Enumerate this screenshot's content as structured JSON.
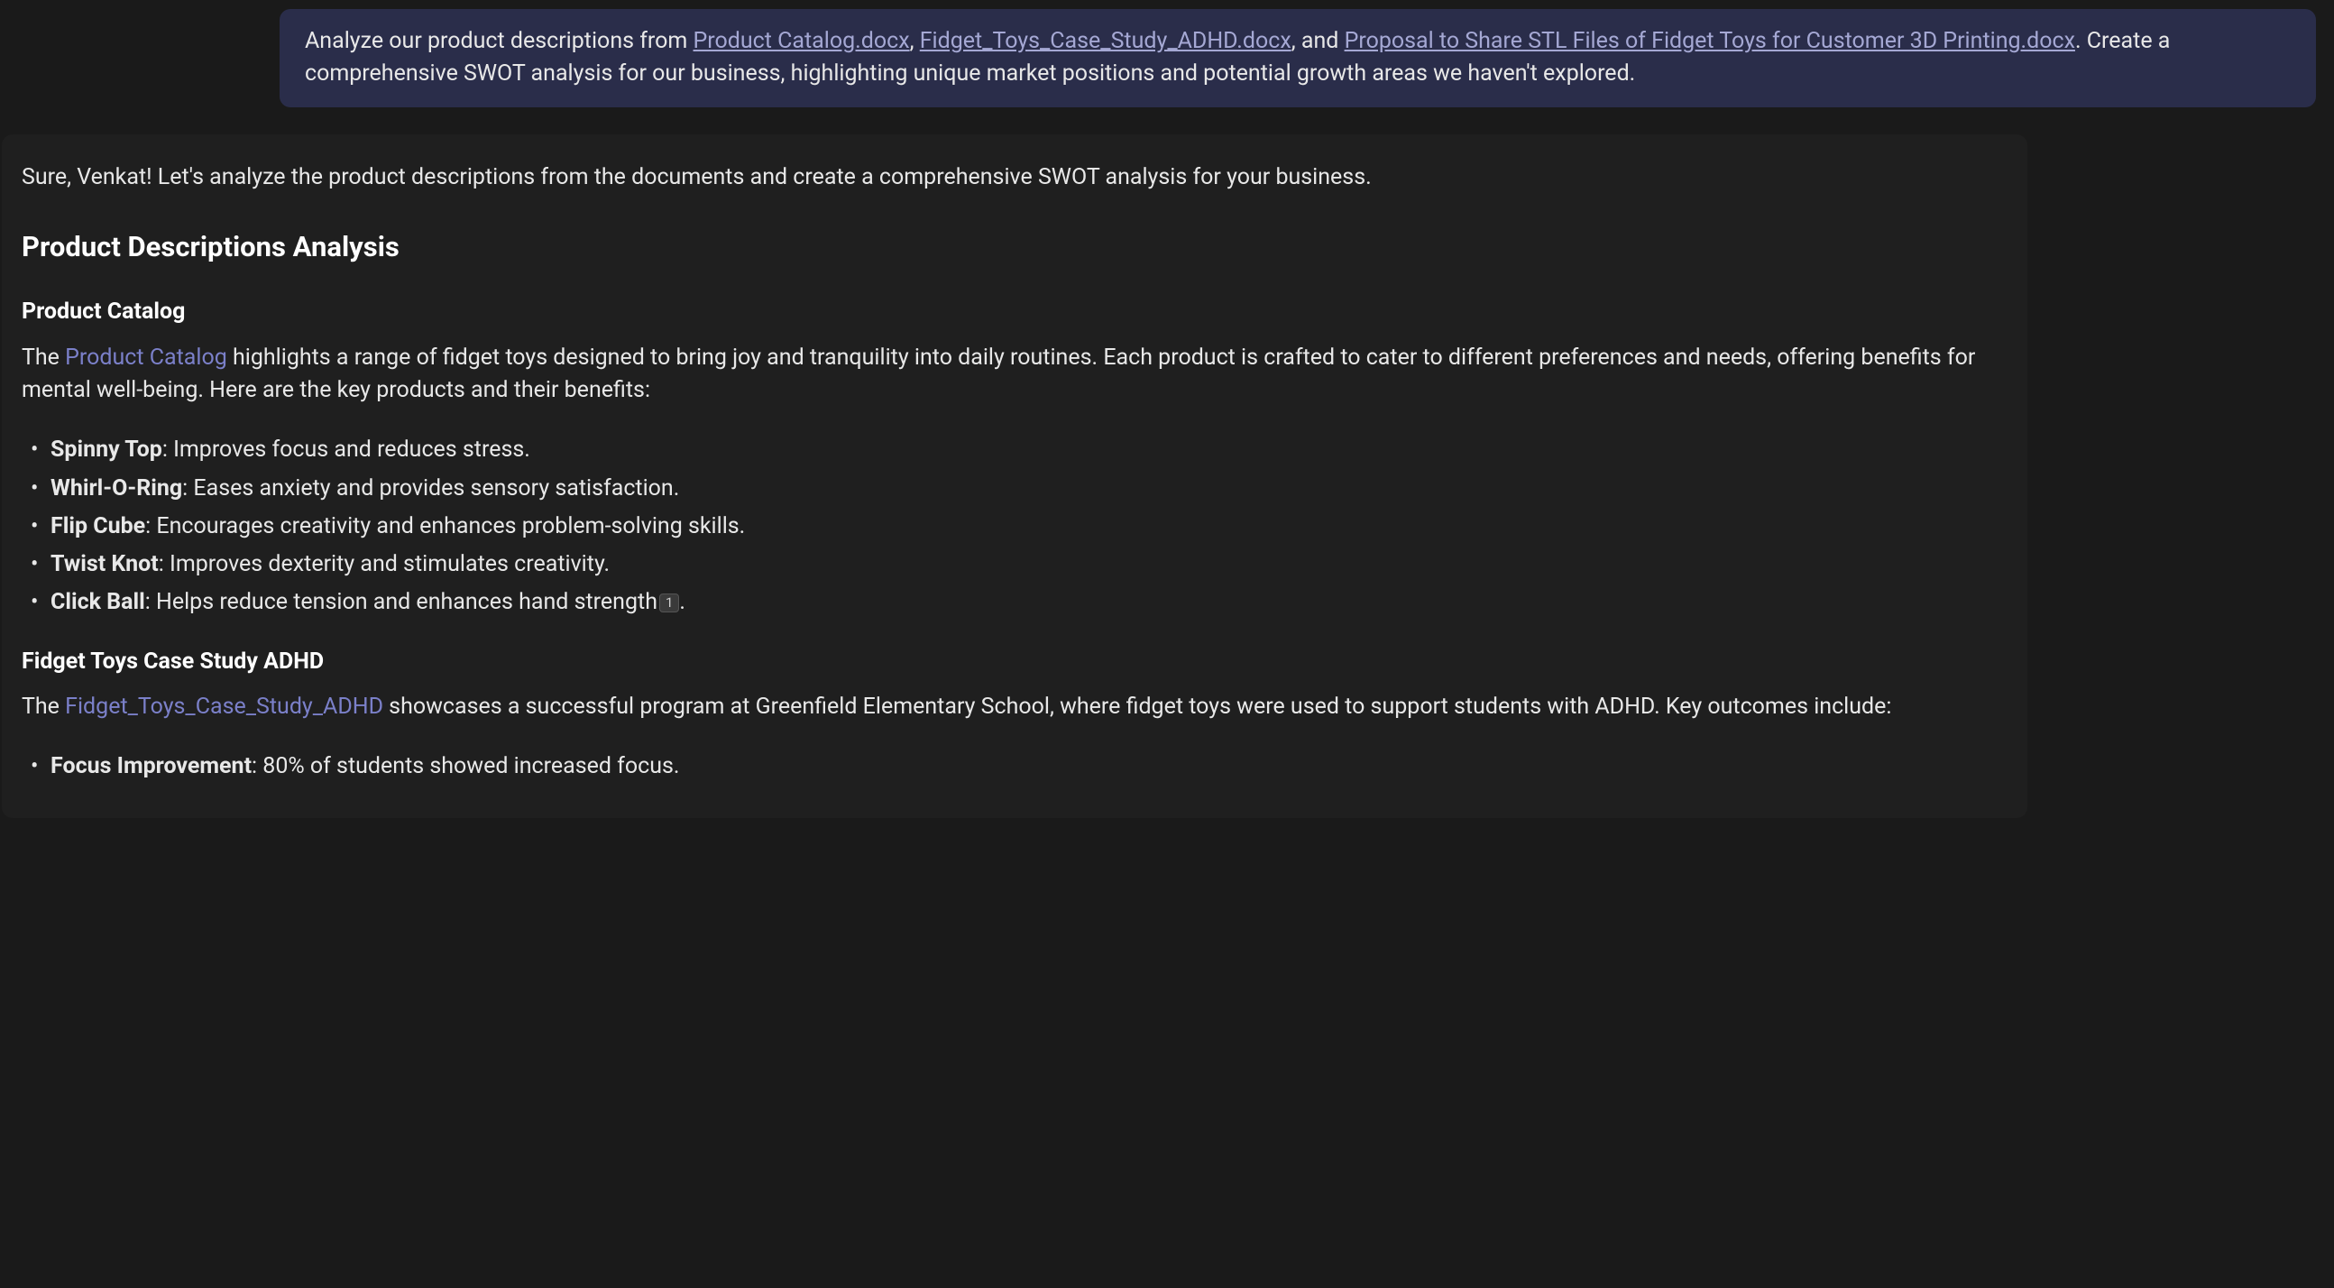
{
  "colors": {
    "page_bg": "#1a1a1a",
    "user_msg_bg": "#2a2d4a",
    "assistant_bg": "#1f1f1f",
    "text_primary": "#e8e8e8",
    "heading": "#ffffff",
    "user_link": "#a5a8d4",
    "inline_link": "#7b80c9",
    "badge_bg": "#3a3a3a",
    "badge_border": "#555"
  },
  "user_message": {
    "part1": "Analyze our product descriptions from ",
    "link1": "Product Catalog.docx",
    "comma1": ", ",
    "link2": "Fidget_Toys_Case_Study_ADHD.docx",
    "and_word": ", and ",
    "link3": "Proposal to Share STL Files of Fidget Toys for Customer 3D Printing.docx",
    "part2": ". Create a comprehensive SWOT analysis for our business, highlighting unique market positions and potential growth areas we haven't explored."
  },
  "assistant": {
    "intro": "Sure, Venkat! Let's analyze the product descriptions from the documents and create a comprehensive SWOT analysis for your business.",
    "section_heading": "Product Descriptions Analysis",
    "catalog": {
      "heading": "Product Catalog",
      "pre_link": "The ",
      "link_text": "Product Catalog",
      "post_link": " highlights a range of fidget toys designed to bring joy and tranquility into daily routines. Each product is crafted to cater to different preferences and needs, offering benefits for mental well-being. Here are the key products and their benefits:",
      "products": [
        {
          "name": "Spinny Top",
          "desc": ": Improves focus and reduces stress."
        },
        {
          "name": "Whirl-O-Ring",
          "desc": ": Eases anxiety and provides sensory satisfaction."
        },
        {
          "name": "Flip Cube",
          "desc": ": Encourages creativity and enhances problem-solving skills."
        },
        {
          "name": "Twist Knot",
          "desc": ": Improves dexterity and stimulates creativity."
        },
        {
          "name": "Click Ball",
          "desc": ": Helps reduce tension and enhances hand strength"
        }
      ],
      "citation": "1",
      "citation_period": "."
    },
    "case_study": {
      "heading": "Fidget Toys Case Study ADHD",
      "pre_link": "The ",
      "link_text": "Fidget_Toys_Case_Study_ADHD",
      "post_link": " showcases a successful program at Greenfield Elementary School, where fidget toys were used to support students with ADHD. Key outcomes include:",
      "outcomes": [
        {
          "name": "Focus Improvement",
          "desc": ": 80% of students showed increased focus."
        }
      ]
    }
  }
}
